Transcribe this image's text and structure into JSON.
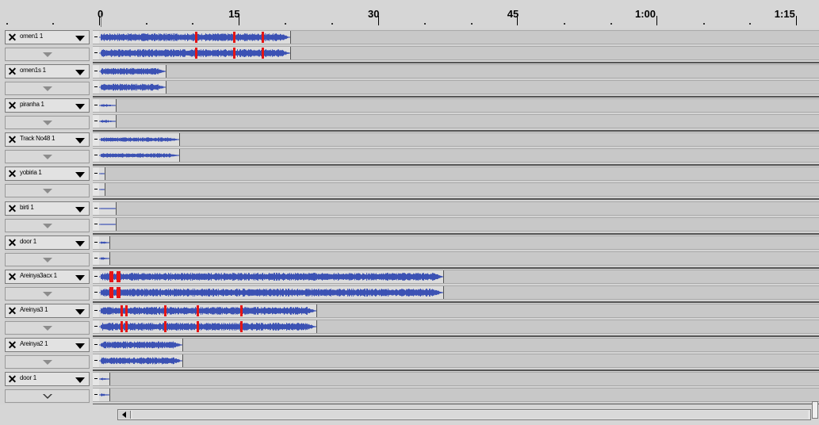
{
  "ruler": {
    "labels": [
      "0",
      "15",
      "30",
      "45",
      "1:00",
      "1:15"
    ],
    "max_seconds": 77
  },
  "tracks": [
    {
      "name": "omen1 1",
      "clip_seconds": 20.6,
      "density": 0.9,
      "red": [
        0.5,
        0.7,
        0.85
      ]
    },
    {
      "name": "omen1s 1",
      "clip_seconds": 7.2,
      "density": 0.8,
      "red": []
    },
    {
      "name": "piranha 1",
      "clip_seconds": 1.8,
      "density": 0.3,
      "red": []
    },
    {
      "name": "Track No48 1",
      "clip_seconds": 8.6,
      "density": 0.5,
      "red": []
    },
    {
      "name": "yobiria 1",
      "clip_seconds": 0.6,
      "density": 0.3,
      "red": []
    },
    {
      "name": "birti 1",
      "clip_seconds": 1.8,
      "density": 0.1,
      "red": []
    },
    {
      "name": "door 1",
      "clip_seconds": 1.1,
      "density": 0.4,
      "red": []
    },
    {
      "name": "Areinya3acx 1",
      "clip_seconds": 37.0,
      "density": 0.9,
      "red": [
        0.03,
        0.05
      ]
    },
    {
      "name": "Areinya3 1",
      "clip_seconds": 23.4,
      "density": 0.9,
      "red": [
        0.1,
        0.12,
        0.3,
        0.45,
        0.65
      ]
    },
    {
      "name": "Areinya2 1",
      "clip_seconds": 9.0,
      "density": 0.8,
      "red": []
    },
    {
      "name": "door 1",
      "clip_seconds": 1.1,
      "density": 0.4,
      "red": []
    }
  ],
  "colors": {
    "waveform": "#3c52b4",
    "clipping": "#e51515"
  }
}
